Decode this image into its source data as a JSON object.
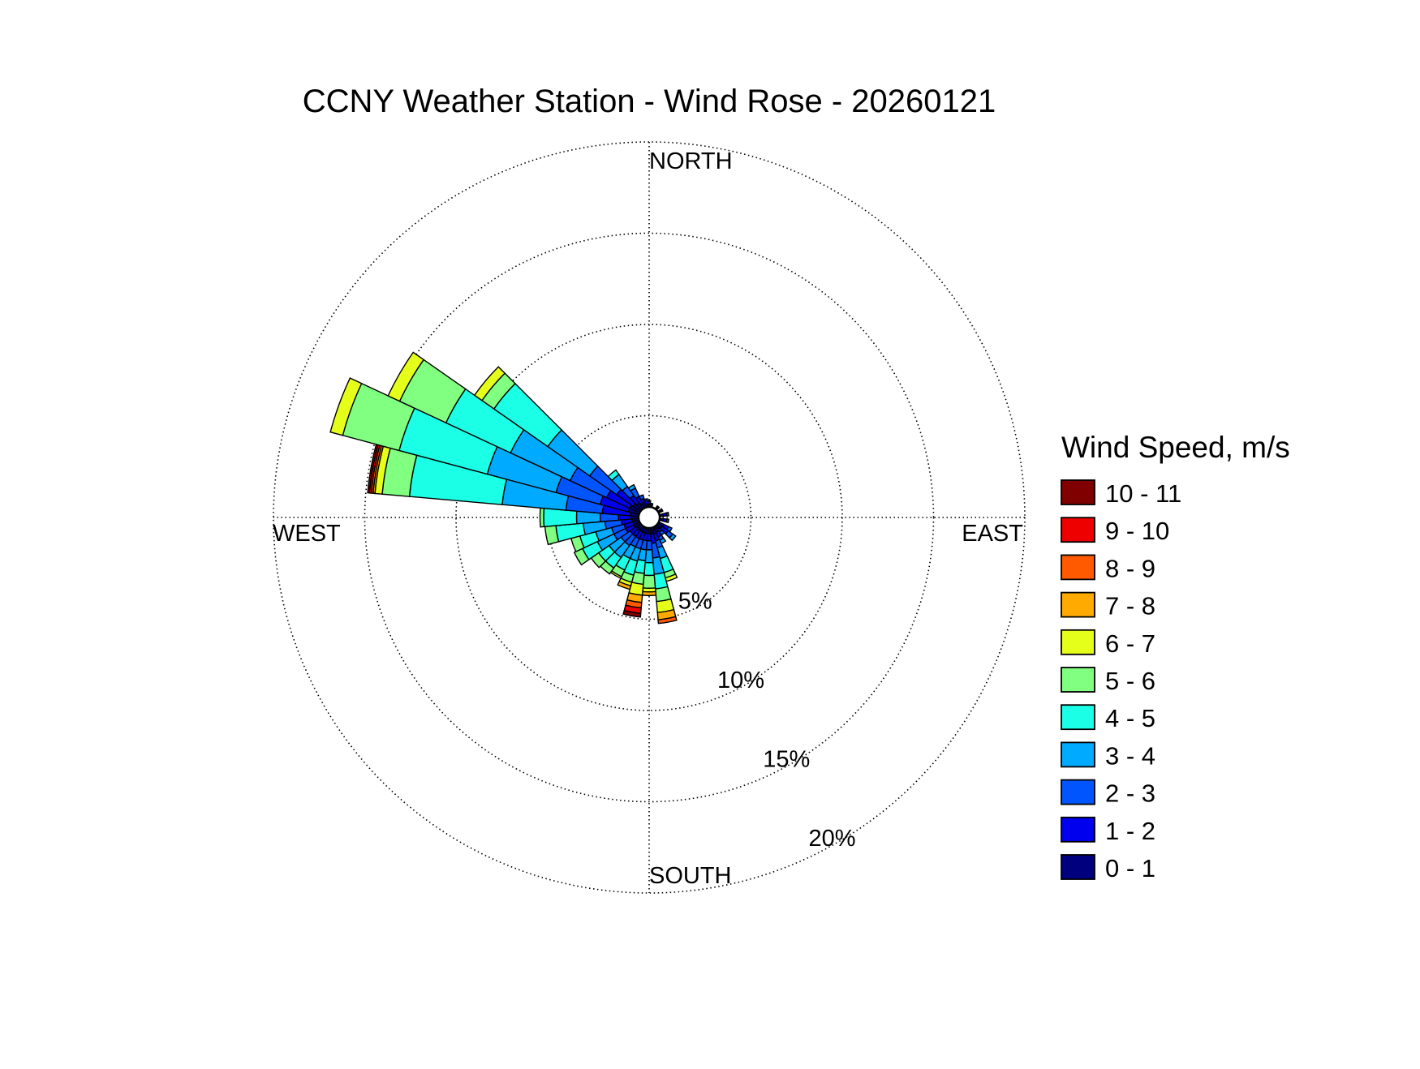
{
  "chart_data": {
    "type": "wind_rose",
    "title": "CCNY Weather Station - Wind Rose - 20260121",
    "direction_labels": {
      "north": "NORTH",
      "east": "EAST",
      "south": "SOUTH",
      "west": "WEST"
    },
    "radial_axis": {
      "unit": "%",
      "ticks": [
        5,
        10,
        15,
        20
      ],
      "tick_labels": [
        "5%",
        "10%",
        "15%",
        "20%"
      ],
      "max": 20,
      "label_bearing_deg": 150
    },
    "legend": {
      "title": "Wind Speed, m/s",
      "bins": [
        {
          "label": "10 - 11",
          "color": "#800000"
        },
        {
          "label": "9 - 10",
          "color": "#ee0000"
        },
        {
          "label": "8 - 9",
          "color": "#ff5a00"
        },
        {
          "label": "7 - 8",
          "color": "#ffaa00"
        },
        {
          "label": "6 - 7",
          "color": "#e6ff1a"
        },
        {
          "label": "5 - 6",
          "color": "#80ff80"
        },
        {
          "label": "4 - 5",
          "color": "#1affe6"
        },
        {
          "label": "3 - 4",
          "color": "#00aaff"
        },
        {
          "label": "2 - 3",
          "color": "#0055ff"
        },
        {
          "label": "1 - 2",
          "color": "#0000ee"
        },
        {
          "label": "0 - 1",
          "color": "#00007f"
        }
      ]
    },
    "sector_width_deg": 10,
    "stack_order": [
      "0 - 1",
      "1 - 2",
      "2 - 3",
      "3 - 4",
      "4 - 5",
      "5 - 6",
      "6 - 7",
      "7 - 8",
      "8 - 9",
      "9 - 10",
      "10 - 11"
    ],
    "sectors": [
      {
        "direction_deg": 0,
        "percent_by_bin": [
          0.15,
          0.15,
          0.05
        ]
      },
      {
        "direction_deg": 10,
        "percent_by_bin": [
          0.1,
          0.1
        ]
      },
      {
        "direction_deg": 40,
        "percent_by_bin": [
          0.1,
          0.1
        ]
      },
      {
        "direction_deg": 60,
        "percent_by_bin": [
          0.15,
          0.1
        ]
      },
      {
        "direction_deg": 80,
        "percent_by_bin": [
          0.2,
          0.2,
          0.1
        ]
      },
      {
        "direction_deg": 100,
        "percent_by_bin": [
          0.2,
          0.2,
          0.1
        ]
      },
      {
        "direction_deg": 120,
        "percent_by_bin": [
          0.3,
          0.3,
          0.2
        ]
      },
      {
        "direction_deg": 130,
        "percent_by_bin": [
          0.3,
          0.4,
          0.3,
          0.2
        ]
      },
      {
        "direction_deg": 140,
        "percent_by_bin": [
          0.2,
          0.2,
          0.2
        ]
      },
      {
        "direction_deg": 150,
        "percent_by_bin": [
          0.3,
          0.3,
          0.2,
          0.2
        ]
      },
      {
        "direction_deg": 160,
        "percent_by_bin": [
          0.35,
          0.4,
          0.4,
          0.6,
          0.8,
          0.3,
          0.2
        ]
      },
      {
        "direction_deg": 170,
        "percent_by_bin": [
          0.35,
          0.5,
          0.8,
          0.9,
          0.8,
          0.7,
          0.6,
          0.4,
          0.2
        ]
      },
      {
        "direction_deg": 180,
        "percent_by_bin": [
          0.3,
          0.4,
          0.5,
          0.7,
          0.7,
          0.7,
          0.2,
          0.2
        ]
      },
      {
        "direction_deg": 190,
        "percent_by_bin": [
          0.3,
          0.4,
          0.5,
          0.6,
          0.7,
          0.6,
          0.6,
          0.4,
          0.3,
          0.3,
          0.2
        ]
      },
      {
        "direction_deg": 200,
        "percent_by_bin": [
          0.3,
          0.4,
          0.5,
          0.7,
          0.8,
          0.4,
          0.2,
          0.2
        ]
      },
      {
        "direction_deg": 210,
        "percent_by_bin": [
          0.3,
          0.4,
          0.5,
          0.7,
          0.7,
          0.4,
          0.1
        ]
      },
      {
        "direction_deg": 220,
        "percent_by_bin": [
          0.3,
          0.4,
          0.6,
          0.8,
          0.7,
          0.4
        ]
      },
      {
        "direction_deg": 230,
        "percent_by_bin": [
          0.3,
          0.4,
          0.6,
          0.8,
          0.7,
          0.5
        ]
      },
      {
        "direction_deg": 240,
        "percent_by_bin": [
          0.35,
          0.5,
          0.7,
          1.0,
          0.9,
          0.5
        ]
      },
      {
        "direction_deg": 250,
        "percent_by_bin": [
          0.35,
          0.5,
          0.7,
          0.9,
          0.9,
          0.5
        ]
      },
      {
        "direction_deg": 260,
        "percent_by_bin": [
          0.35,
          0.6,
          0.9,
          1.2,
          1.5,
          0.6
        ]
      },
      {
        "direction_deg": 270,
        "percent_by_bin": [
          0.4,
          0.7,
          1.0,
          1.3,
          1.8,
          0.2
        ]
      },
      {
        "direction_deg": 280,
        "percent_by_bin": [
          0.5,
          1.5,
          2.0,
          3.5,
          5.1,
          1.5,
          0.4,
          0.1,
          0.1,
          0.1,
          0.1
        ]
      },
      {
        "direction_deg": 290,
        "percent_by_bin": [
          0.6,
          1.6,
          2.5,
          3.9,
          5.0,
          3.2,
          0.7
        ]
      },
      {
        "direction_deg": 300,
        "percent_by_bin": [
          0.6,
          1.4,
          2.2,
          3.6,
          3.9,
          2.8,
          0.7
        ]
      },
      {
        "direction_deg": 310,
        "percent_by_bin": [
          0.5,
          1.1,
          1.8,
          2.8,
          3.6,
          0.8,
          0.5
        ]
      },
      {
        "direction_deg": 320,
        "percent_by_bin": [
          0.4,
          0.5,
          0.6,
          0.8,
          0.3
        ]
      },
      {
        "direction_deg": 330,
        "percent_by_bin": [
          0.3,
          0.4,
          0.5,
          0.2
        ]
      },
      {
        "direction_deg": 340,
        "percent_by_bin": [
          0.2,
          0.3,
          0.2
        ]
      },
      {
        "direction_deg": 350,
        "percent_by_bin": [
          0.15,
          0.2,
          0.1
        ]
      }
    ]
  }
}
